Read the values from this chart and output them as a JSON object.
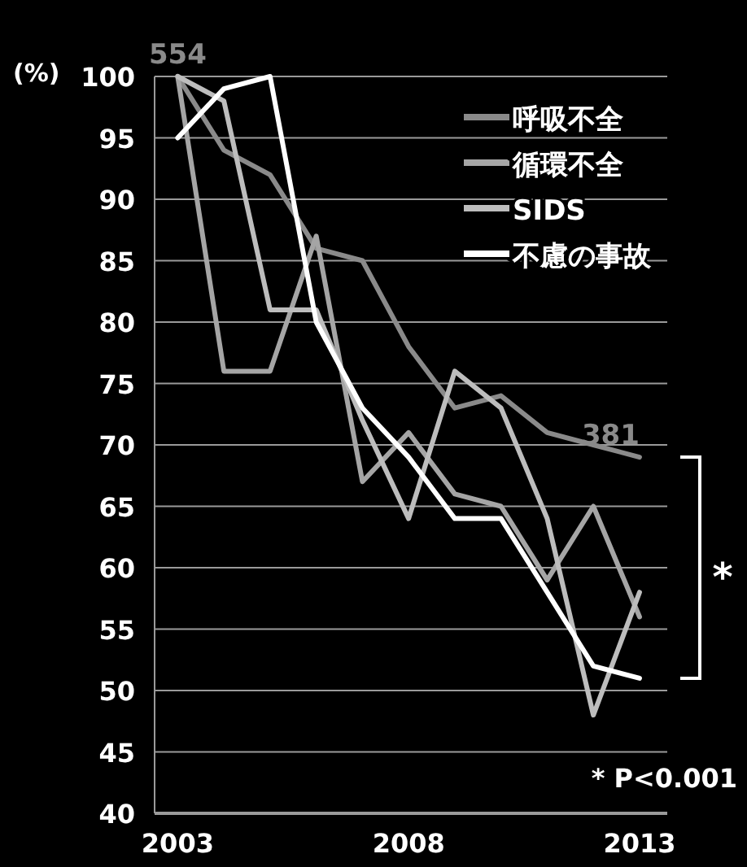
{
  "chart_data": {
    "type": "line",
    "ylabel": "(%)",
    "x": [
      2003,
      2004,
      2005,
      2006,
      2007,
      2008,
      2009,
      2010,
      2011,
      2012,
      2013
    ],
    "series": [
      {
        "name": "呼吸不全",
        "color": "#8a8a8a",
        "values": [
          100,
          94,
          92,
          86,
          85,
          78,
          73,
          74,
          71,
          70,
          69
        ]
      },
      {
        "name": "循環不全",
        "color": "#a5a5a5",
        "values": [
          100,
          76,
          76,
          87,
          67,
          71,
          66,
          65,
          59,
          65,
          56
        ]
      },
      {
        "name": "SIDS",
        "color": "#bdbdbd",
        "values": [
          100,
          98,
          81,
          81,
          72,
          64,
          76,
          73,
          64,
          48,
          58
        ]
      },
      {
        "name": "不慮の事故",
        "color": "#ffffff",
        "values": [
          95,
          99,
          100,
          80,
          73,
          69,
          64,
          64,
          58,
          52,
          51
        ]
      }
    ],
    "xlim": [
      2002.5,
      2013.6
    ],
    "ylim": [
      40,
      100
    ],
    "xticks": [
      2003,
      2008,
      2013
    ],
    "yticks": [
      40,
      45,
      50,
      55,
      60,
      65,
      70,
      75,
      80,
      85,
      90,
      95,
      100
    ],
    "grid": "y",
    "legend": "top right",
    "annotations": [
      {
        "text": "554",
        "x": 2003,
        "y": 100
      },
      {
        "text": "381",
        "x": 2013,
        "y": 69
      },
      "*",
      "* P<0.001"
    ]
  }
}
